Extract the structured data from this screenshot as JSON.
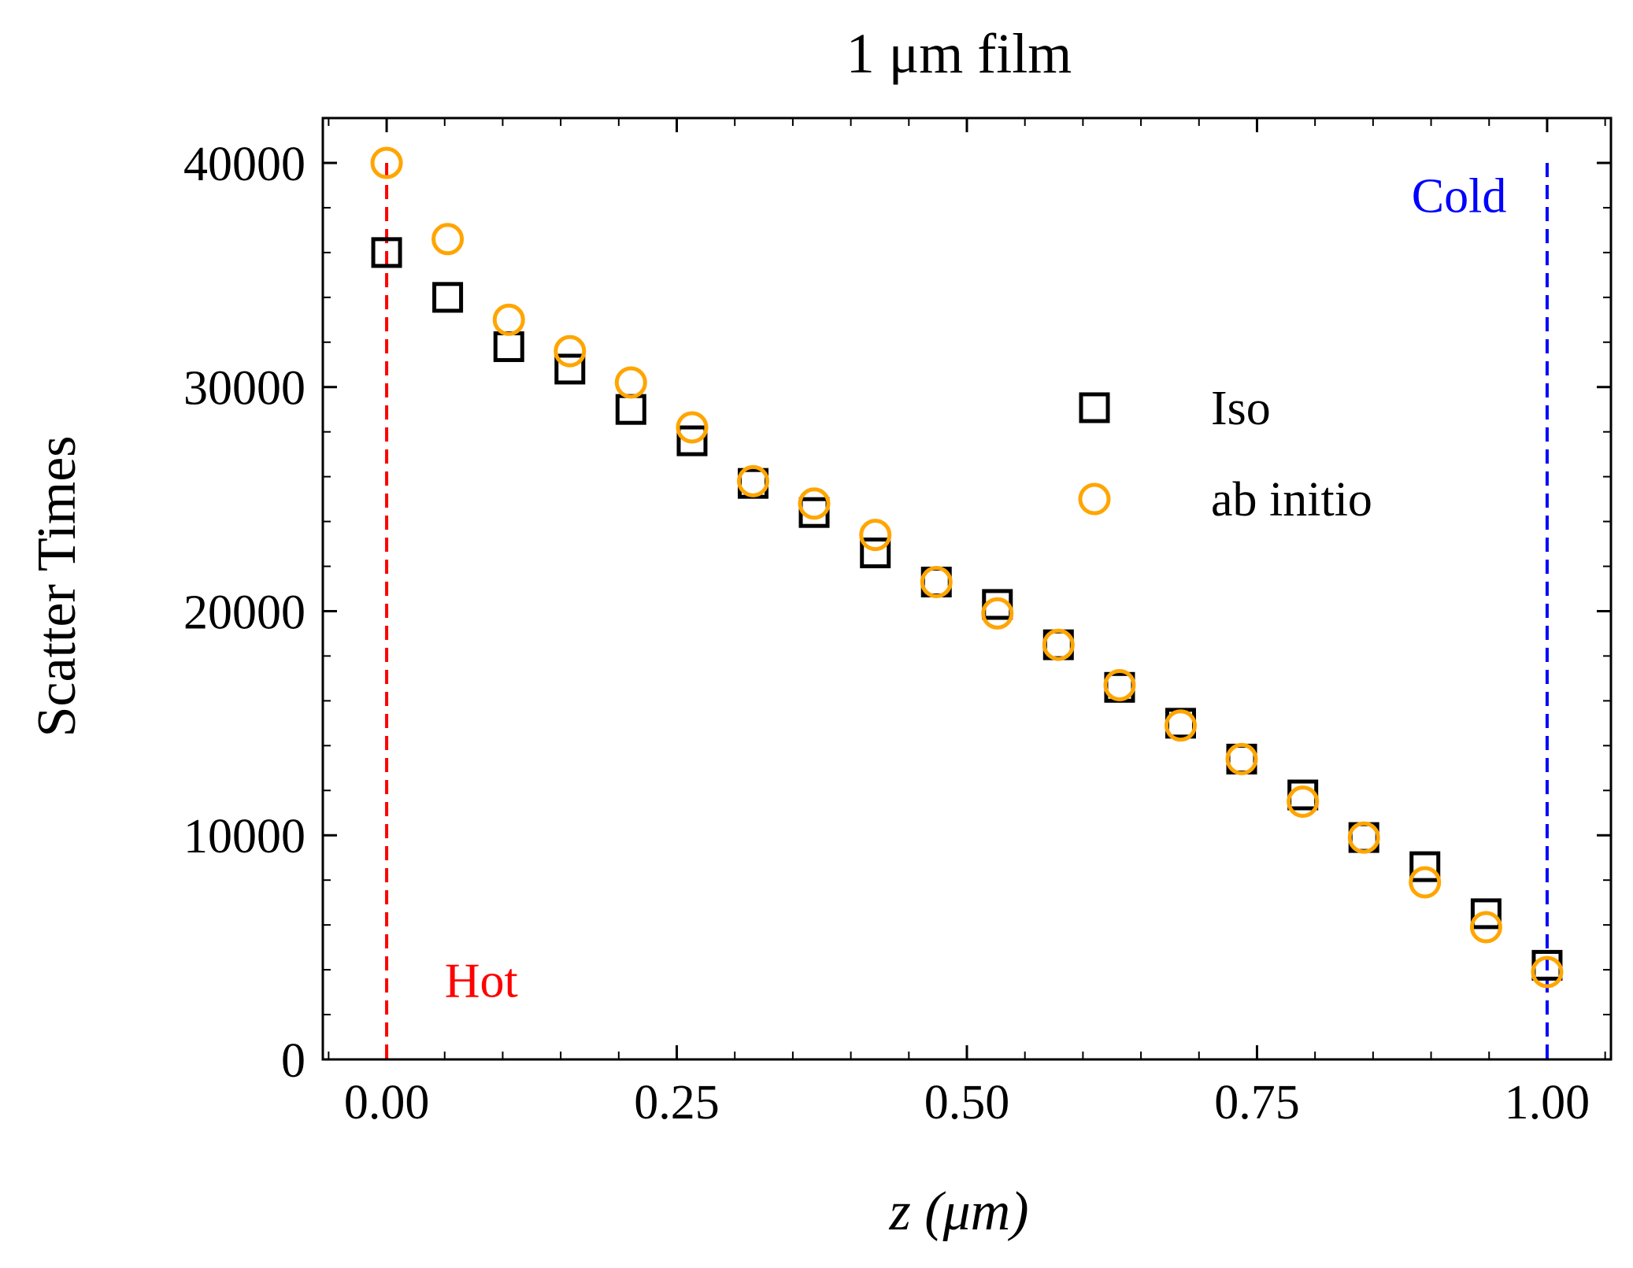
{
  "chart_data": {
    "type": "scatter",
    "title": "1 μm film",
    "xlabel": "z (μm)",
    "ylabel": "Scatter Times",
    "xlim": [
      -0.055,
      1.055
    ],
    "ylim": [
      0,
      42000
    ],
    "x_ticks": [
      "0.00",
      "0.25",
      "0.50",
      "0.75",
      "1.00"
    ],
    "x_tick_values": [
      0,
      0.25,
      0.5,
      0.75,
      1.0
    ],
    "y_ticks": [
      "0",
      "10000",
      "20000",
      "30000",
      "40000"
    ],
    "y_tick_values": [
      0,
      10000,
      20000,
      30000,
      40000
    ],
    "legend_position": "center-right",
    "grid": false,
    "x": [
      0.0,
      0.0526,
      0.1053,
      0.1579,
      0.2105,
      0.2632,
      0.3158,
      0.3684,
      0.4211,
      0.4737,
      0.5263,
      0.5789,
      0.6316,
      0.6842,
      0.7368,
      0.7895,
      0.8421,
      0.8947,
      0.9474,
      1.0
    ],
    "series": [
      {
        "name": "Iso",
        "marker": "square",
        "color": "#000000",
        "values": [
          36000,
          34000,
          31800,
          30800,
          29000,
          27600,
          25700,
          24400,
          22600,
          21300,
          20300,
          18500,
          16600,
          15000,
          13400,
          11800,
          9900,
          8600,
          6500,
          4200
        ]
      },
      {
        "name": "ab initio",
        "marker": "circle",
        "color": "#ffa500",
        "values": [
          40000,
          36600,
          33000,
          31600,
          30200,
          28200,
          25800,
          24800,
          23400,
          21300,
          19900,
          18500,
          16700,
          14900,
          13400,
          11500,
          9900,
          7900,
          5900,
          3900
        ]
      }
    ],
    "annotations": [
      {
        "text": "Hot",
        "color": "#ff0000"
      },
      {
        "text": "Cold",
        "color": "#0000ff"
      }
    ],
    "boundaries": [
      {
        "x": 0.0,
        "color": "#ff0000",
        "style": "dashed"
      },
      {
        "x": 1.0,
        "color": "#0000ff",
        "style": "dashed"
      }
    ]
  }
}
